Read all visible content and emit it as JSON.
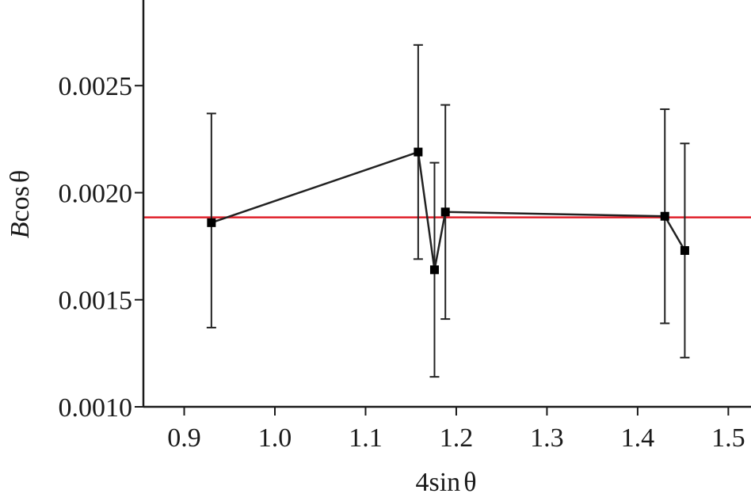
{
  "chart_data": {
    "type": "scatter",
    "title": "",
    "xlabel_parts": [
      "4sin",
      "θ"
    ],
    "ylabel_parts": [
      "B",
      "cos",
      "θ"
    ],
    "xlim": [
      0.855,
      1.525
    ],
    "ylim": [
      0.001,
      0.0029
    ],
    "x_ticks": [
      0.9,
      1.0,
      1.1,
      1.2,
      1.3,
      1.4,
      1.5
    ],
    "x_tick_labels": [
      "0.9",
      "1.0",
      "1.1",
      "1.2",
      "1.3",
      "1.4",
      "1.5"
    ],
    "y_ticks": [
      0.001,
      0.0015,
      0.002,
      0.0025
    ],
    "y_tick_labels": [
      "0.0010",
      "0.0015",
      "0.0020",
      "0.0025"
    ],
    "grid": false,
    "series": [
      {
        "style": "points-with-error-bars-connected",
        "color": "#222222",
        "points": [
          {
            "x": 0.93,
            "y": 0.00186,
            "err_low": 0.00137,
            "err_high": 0.00237
          },
          {
            "x": 1.158,
            "y": 0.00219,
            "err_low": 0.00169,
            "err_high": 0.00269
          },
          {
            "x": 1.176,
            "y": 0.00164,
            "err_low": 0.00114,
            "err_high": 0.00214
          },
          {
            "x": 1.188,
            "y": 0.00191,
            "err_low": 0.00141,
            "err_high": 0.00241
          },
          {
            "x": 1.43,
            "y": 0.00189,
            "err_low": 0.00139,
            "err_high": 0.00239
          },
          {
            "x": 1.452,
            "y": 0.00173,
            "err_low": 0.00123,
            "err_high": 0.00223
          }
        ]
      },
      {
        "style": "horizontal-reference-line",
        "color": "#e0202a",
        "y": 0.001885
      }
    ]
  }
}
